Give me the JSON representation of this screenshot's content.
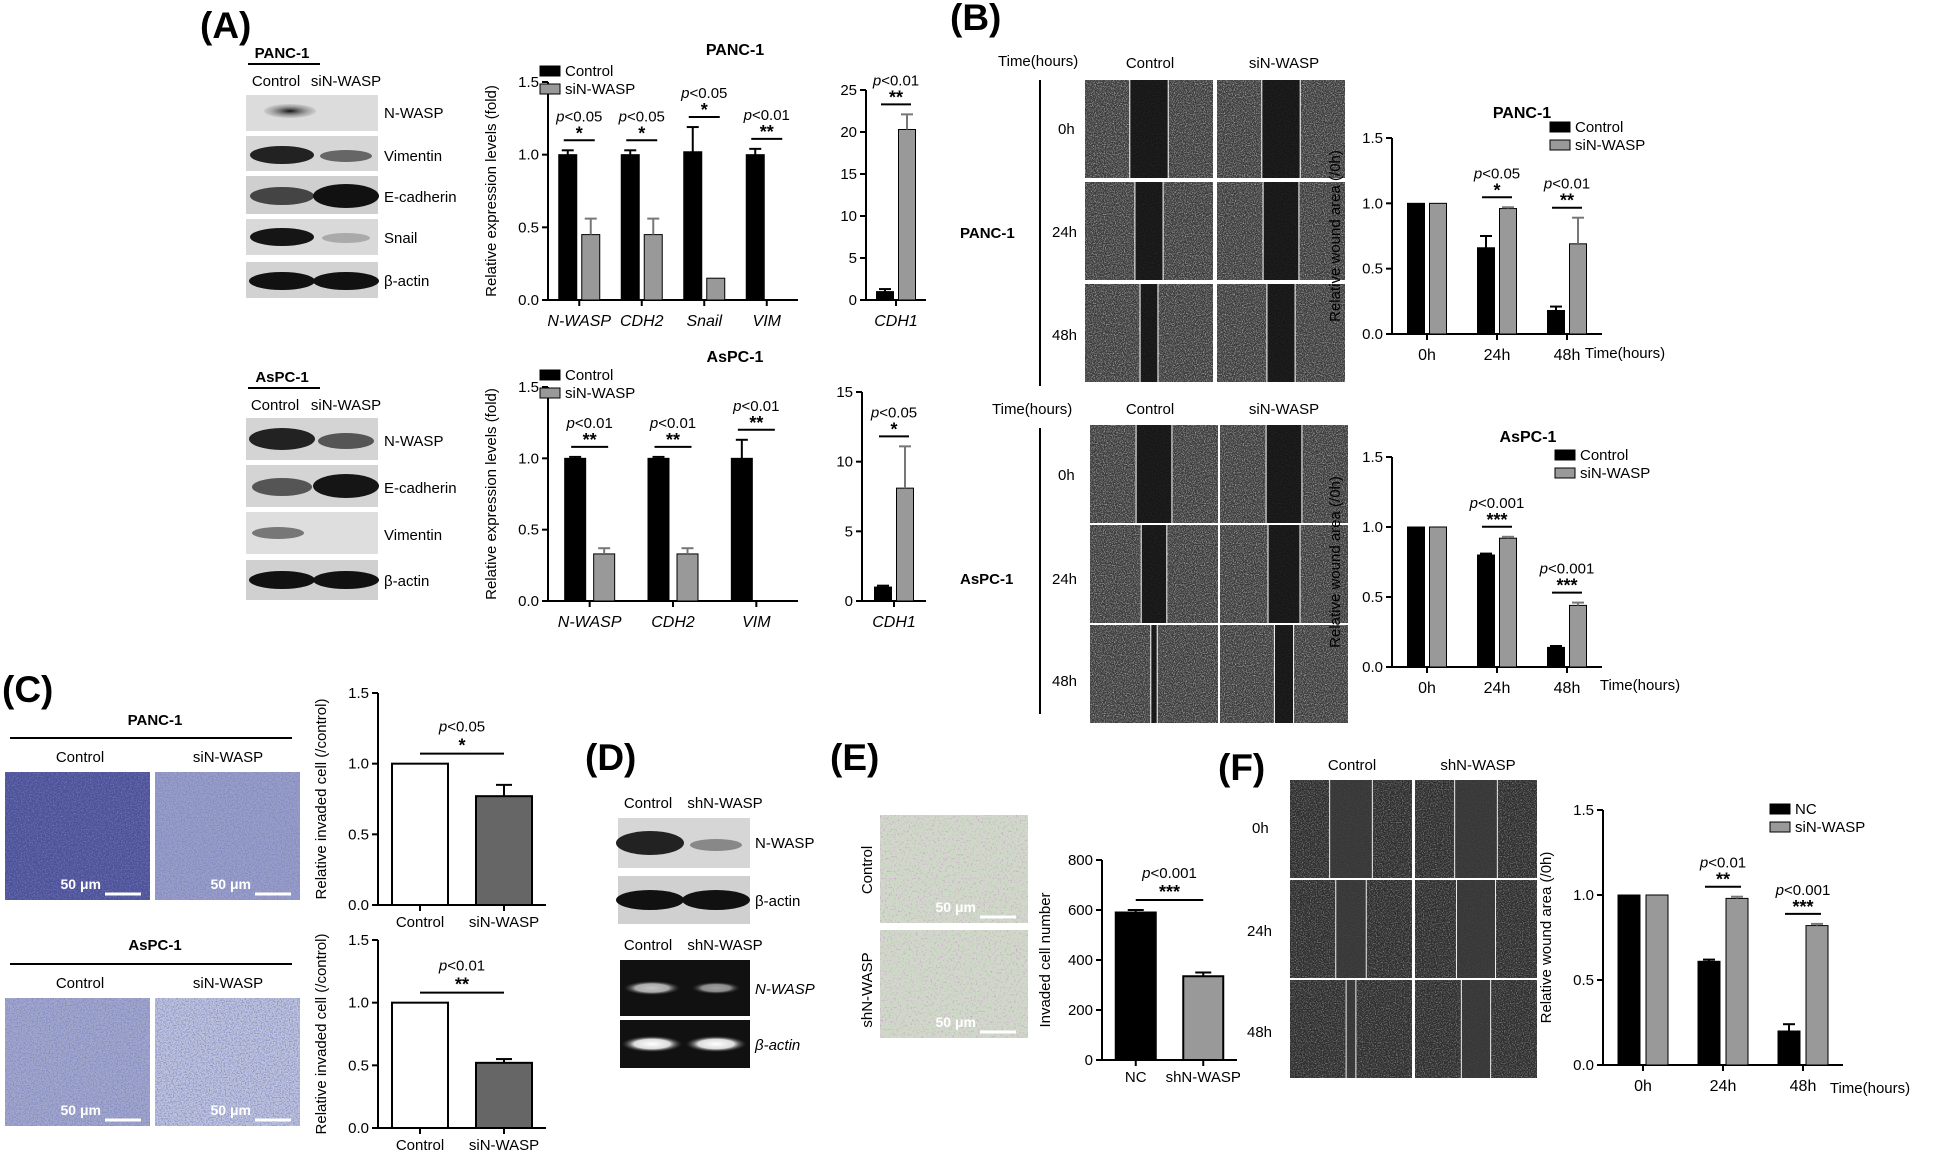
{
  "panel_labels": {
    "A": "(A)",
    "B": "(B)",
    "C": "(C)",
    "D": "(D)",
    "E": "(E)",
    "F": "(F)"
  },
  "blot_A_panc": {
    "title": "PANC-1",
    "columns": [
      "Control",
      "siN-WASP"
    ],
    "rows": [
      "N-WASP",
      "Vimentin",
      "E-cadherin",
      "Snail",
      "β-actin"
    ]
  },
  "blot_A_aspc": {
    "title": "AsPC-1",
    "columns": [
      "Control",
      "siN-WASP"
    ],
    "rows": [
      "N-WASP",
      "E-cadherin",
      "Vimentin",
      "β-actin"
    ]
  },
  "woundB": {
    "time_header": "Time(hours)",
    "columns": [
      "Control",
      "siN-WASP"
    ],
    "rows": [
      "0h",
      "24h",
      "48h"
    ],
    "panc_label": "PANC-1",
    "aspc_label": "AsPC-1"
  },
  "invasionC": {
    "panc_title": "PANC-1",
    "aspc_title": "AsPC-1",
    "columns": [
      "Control",
      "siN-WASP"
    ],
    "scale": "50 μm"
  },
  "blotD": {
    "columns": [
      "Control",
      "shN-WASP"
    ],
    "rows_protein": [
      "N-WASP",
      "β-actin"
    ],
    "rows_rna": [
      "N-WASP",
      "β-actin"
    ]
  },
  "imagesE": {
    "rows": [
      "Control",
      "shN-WASP"
    ],
    "scale": "50 μm"
  },
  "woundF": {
    "columns": [
      "Control",
      "shN-WASP"
    ],
    "rows": [
      "0h",
      "24h",
      "48h"
    ]
  },
  "colors": {
    "control": "#000000",
    "treated": "#999999",
    "nc_open": "#ffffff",
    "dark_grey": "#666666",
    "stain_blue": "#3b3f86",
    "stain_purple": "#9a4fa0"
  },
  "chart_data": [
    {
      "id": "a_panc_expr",
      "type": "bar",
      "title": "PANC-1",
      "ylabel": "Relative expression levels (fold)",
      "categories": [
        "N-WASP",
        "CDH2",
        "Snail",
        "VIM"
      ],
      "ylim": [
        0,
        1.5
      ],
      "yticks": [
        "0.0",
        "0.5",
        "1.0",
        "1.5"
      ],
      "series": [
        {
          "name": "Control",
          "values": [
            1.0,
            1.0,
            1.02,
            1.0
          ],
          "errors": [
            0.03,
            0.03,
            0.17,
            0.04
          ]
        },
        {
          "name": "siN-WASP",
          "values": [
            0.45,
            0.45,
            0.15,
            0.0
          ],
          "errors": [
            0.11,
            0.11,
            0.0,
            0.0
          ]
        }
      ],
      "annotations": [
        {
          "category": "N-WASP",
          "p": "p<0.05",
          "stars": "*"
        },
        {
          "category": "CDH2",
          "p": "p<0.05",
          "stars": "*"
        },
        {
          "category": "Snail",
          "p": "p<0.05",
          "stars": "*"
        },
        {
          "category": "VIM",
          "p": "p<0.01",
          "stars": "**"
        }
      ],
      "legend": "top-left"
    },
    {
      "id": "a_panc_cdh1",
      "type": "bar",
      "categories": [
        "CDH1"
      ],
      "ylim": [
        0,
        25
      ],
      "yticks": [
        "0",
        "5",
        "10",
        "15",
        "20",
        "25"
      ],
      "series": [
        {
          "name": "Control",
          "values": [
            1.0
          ],
          "errors": [
            0.3
          ]
        },
        {
          "name": "siN-WASP",
          "values": [
            20.3
          ],
          "errors": [
            1.8
          ]
        }
      ],
      "annotations": [
        {
          "category": "CDH1",
          "p": "p<0.01",
          "stars": "**"
        }
      ]
    },
    {
      "id": "a_aspc_expr",
      "type": "bar",
      "title": "AsPC-1",
      "ylabel": "Relative expression levels (fold)",
      "categories": [
        "N-WASP",
        "CDH2",
        "VIM"
      ],
      "ylim": [
        0,
        1.5
      ],
      "yticks": [
        "0.0",
        "0.5",
        "1.0",
        "1.5"
      ],
      "series": [
        {
          "name": "Control",
          "values": [
            1.0,
            1.0,
            1.0
          ],
          "errors": [
            0.01,
            0.01,
            0.13
          ]
        },
        {
          "name": "siN-WASP",
          "values": [
            0.33,
            0.33,
            0.0
          ],
          "errors": [
            0.04,
            0.04,
            0.0
          ]
        }
      ],
      "annotations": [
        {
          "category": "N-WASP",
          "p": "p<0.01",
          "stars": "**"
        },
        {
          "category": "CDH2",
          "p": "p<0.01",
          "stars": "**"
        },
        {
          "category": "VIM",
          "p": "p<0.01",
          "stars": "**"
        }
      ],
      "legend": "top-left"
    },
    {
      "id": "a_aspc_cdh1",
      "type": "bar",
      "categories": [
        "CDH1"
      ],
      "ylim": [
        0,
        15
      ],
      "yticks": [
        "0",
        "5",
        "10",
        "15"
      ],
      "series": [
        {
          "name": "Control",
          "values": [
            1.0
          ],
          "errors": [
            0.1
          ]
        },
        {
          "name": "siN-WASP",
          "values": [
            8.1
          ],
          "errors": [
            3.0
          ]
        }
      ],
      "annotations": [
        {
          "category": "CDH1",
          "p": "p<0.05",
          "stars": "*"
        }
      ]
    },
    {
      "id": "b_panc_wound",
      "type": "bar",
      "title": "PANC-1",
      "ylabel": "Relative wound area (/0h)",
      "xlabel": "Time(hours)",
      "categories": [
        "0h",
        "24h",
        "48h"
      ],
      "ylim": [
        0,
        1.5
      ],
      "yticks": [
        "0.0",
        "0.5",
        "1.0",
        "1.5"
      ],
      "series": [
        {
          "name": "Control",
          "values": [
            1.0,
            0.66,
            0.18
          ],
          "errors": [
            0,
            0.09,
            0.03
          ]
        },
        {
          "name": "siN-WASP",
          "values": [
            1.0,
            0.96,
            0.69
          ],
          "errors": [
            0,
            0.01,
            0.2
          ]
        }
      ],
      "annotations": [
        {
          "category": "24h",
          "p": "p<0.05",
          "stars": "*"
        },
        {
          "category": "48h",
          "p": "p<0.01",
          "stars": "**"
        }
      ],
      "legend": "top-right"
    },
    {
      "id": "b_aspc_wound",
      "type": "bar",
      "title": "AsPC-1",
      "ylabel": "Relative wound area (/0h)",
      "xlabel": "Time(hours)",
      "categories": [
        "0h",
        "24h",
        "48h"
      ],
      "ylim": [
        0,
        1.5
      ],
      "yticks": [
        "0.0",
        "0.5",
        "1.0",
        "1.5"
      ],
      "series": [
        {
          "name": "Control",
          "values": [
            1.0,
            0.8,
            0.14
          ],
          "errors": [
            0,
            0.01,
            0.01
          ]
        },
        {
          "name": "siN-WASP",
          "values": [
            1.0,
            0.92,
            0.44
          ],
          "errors": [
            0,
            0.01,
            0.02
          ]
        }
      ],
      "annotations": [
        {
          "category": "24h",
          "p": "p<0.001",
          "stars": "***"
        },
        {
          "category": "48h",
          "p": "p<0.001",
          "stars": "***"
        }
      ],
      "legend": "top-right"
    },
    {
      "id": "c_panc_inv",
      "type": "bar",
      "ylabel": "Relative invaded cell (/control)",
      "categories": [
        "Control",
        "siN-WASP"
      ],
      "ylim": [
        0,
        1.5
      ],
      "yticks": [
        "0.0",
        "0.5",
        "1.0",
        "1.5"
      ],
      "values": [
        1.0,
        0.77
      ],
      "errors": [
        0,
        0.08
      ],
      "annotation": {
        "p": "p<0.05",
        "stars": "*"
      }
    },
    {
      "id": "c_aspc_inv",
      "type": "bar",
      "ylabel": "Relative invaded cell (/control)",
      "categories": [
        "Control",
        "siN-WASP"
      ],
      "ylim": [
        0,
        1.5
      ],
      "yticks": [
        "0.0",
        "0.5",
        "1.0",
        "1.5"
      ],
      "values": [
        1.0,
        0.52
      ],
      "errors": [
        0,
        0.03
      ],
      "annotation": {
        "p": "p<0.01",
        "stars": "**"
      }
    },
    {
      "id": "e_invaded",
      "type": "bar",
      "ylabel": "Invaded cell number",
      "categories": [
        "NC",
        "shN-WASP"
      ],
      "ylim": [
        0,
        800
      ],
      "yticks": [
        "0",
        "200",
        "400",
        "600",
        "800"
      ],
      "values": [
        590,
        335
      ],
      "errors": [
        10,
        15
      ],
      "annotation": {
        "p": "p<0.001",
        "stars": "***"
      }
    },
    {
      "id": "f_wound",
      "type": "bar",
      "ylabel": "Relative wound area (/0h)",
      "xlabel": "Time(hours)",
      "categories": [
        "0h",
        "24h",
        "48h"
      ],
      "ylim": [
        0,
        1.5
      ],
      "yticks": [
        "0.0",
        "0.5",
        "1.0",
        "1.5"
      ],
      "series": [
        {
          "name": "NC",
          "values": [
            1.0,
            0.61,
            0.2
          ],
          "errors": [
            0,
            0.01,
            0.04
          ]
        },
        {
          "name": "siN-WASP",
          "values": [
            1.0,
            0.98,
            0.82
          ],
          "errors": [
            0,
            0.01,
            0.01
          ]
        }
      ],
      "annotations": [
        {
          "category": "24h",
          "p": "p<0.01",
          "stars": "**"
        },
        {
          "category": "48h",
          "p": "p<0.001",
          "stars": "***"
        }
      ],
      "legend": "top-right"
    }
  ]
}
